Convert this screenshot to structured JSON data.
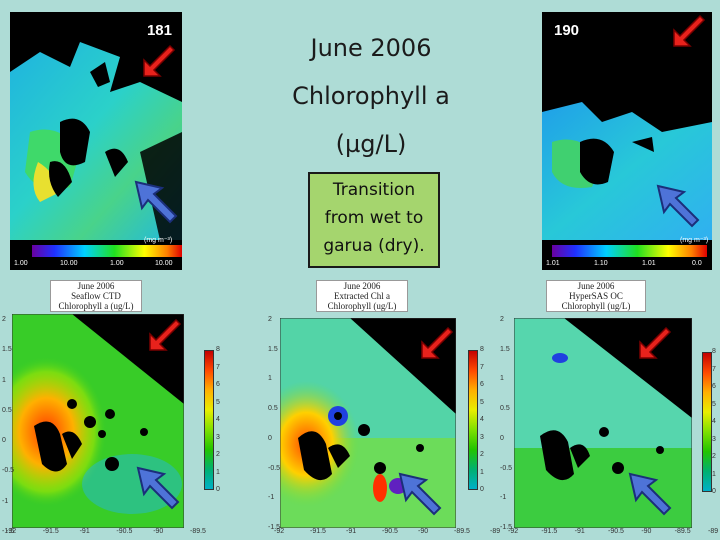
{
  "title": {
    "line1": "June 2006",
    "line2": "Chlorophyll a",
    "line3": "(µg/L)"
  },
  "note": {
    "line1": "Transition",
    "line2": "from wet to",
    "line3": "garua (dry)."
  },
  "satellite_left": {
    "day_label": "181",
    "unit": "(mg m⁻³)",
    "scale_ticks": [
      "1.00",
      "10.00",
      "1.00",
      "10.00"
    ]
  },
  "satellite_right": {
    "day_label": "190",
    "unit": "(mg m⁻³)",
    "scale_ticks": [
      "1.01",
      "1.10",
      "1.01",
      "0.0"
    ]
  },
  "plots": [
    {
      "title": [
        "June 2006",
        "Seaflow CTD",
        "Chlorophyll a (ug/L)"
      ],
      "y_ticks": [
        "2",
        "1.5",
        "1",
        "0.5",
        "0",
        "-0.5",
        "-1",
        "-1.5"
      ],
      "x_ticks": [
        "-92",
        "-91.5",
        "-91",
        "-90.5",
        "-90",
        "-89.5"
      ],
      "cbar_ticks": [
        "8",
        "7",
        "6",
        "5",
        "4",
        "3",
        "2",
        "1",
        "0"
      ]
    },
    {
      "title": [
        "June 2006",
        "Extracted Chl a",
        "Chlorophyll (ug/L)"
      ],
      "y_ticks": [
        "2",
        "1.5",
        "1",
        "0.5",
        "0",
        "-0.5",
        "-1",
        "-1.5"
      ],
      "x_ticks": [
        "-92",
        "-91.5",
        "-91",
        "-90.5",
        "-90",
        "-89.5",
        "-89"
      ],
      "cbar_ticks": [
        "8",
        "7",
        "6",
        "5",
        "4",
        "3",
        "2",
        "1",
        "0"
      ]
    },
    {
      "title": [
        "June 2006",
        "HyperSAS OC",
        "Chlorophyll (ug/L)"
      ],
      "y_ticks": [
        "2",
        "1.5",
        "1",
        "0.5",
        "0",
        "-0.5",
        "-1",
        "-1.5"
      ],
      "x_ticks": [
        "-92",
        "-91.5",
        "-91",
        "-90.5",
        "-90",
        "-89.5",
        "-89"
      ],
      "cbar_ticks": [
        "8",
        "7",
        "6",
        "5",
        "4",
        "3",
        "2",
        "1",
        "0"
      ]
    }
  ],
  "colors": {
    "background": "#aedcd6",
    "note_bg": "#a5d56e",
    "red_arrow": "#e8221c",
    "blue_arrow": "#3a5fc8"
  }
}
